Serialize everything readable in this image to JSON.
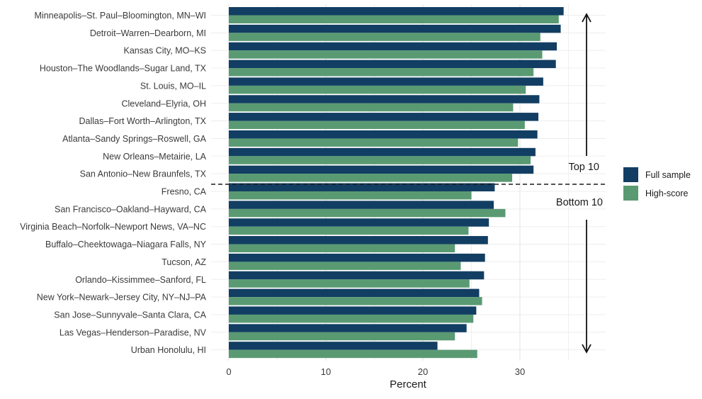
{
  "chart_data": {
    "type": "bar",
    "orientation": "horizontal",
    "categories": [
      "Minneapolis–St. Paul–Bloomington, MN–WI",
      "Detroit–Warren–Dearborn, MI",
      "Kansas City, MO–KS",
      "Houston–The Woodlands–Sugar Land, TX",
      "St. Louis, MO–IL",
      "Cleveland–Elyria, OH",
      "Dallas–Fort Worth–Arlington, TX",
      "Atlanta–Sandy Springs–Roswell, GA",
      "New Orleans–Metairie, LA",
      "San Antonio–New Braunfels, TX",
      "Fresno, CA",
      "San Francisco–Oakland–Hayward, CA",
      "Virginia Beach–Norfolk–Newport News, VA–NC",
      "Buffalo–Cheektowaga–Niagara Falls, NY",
      "Tucson, AZ",
      "Orlando–Kissimmee–Sanford, FL",
      "New York–Newark–Jersey City, NY–NJ–PA",
      "San Jose–Sunnyvale–Santa Clara, CA",
      "Las Vegas–Henderson–Paradise, NV",
      "Urban Honolulu, HI"
    ],
    "series": [
      {
        "name": "Full sample",
        "color": "#123e63",
        "values": [
          34.5,
          34.2,
          33.8,
          33.7,
          32.4,
          32.0,
          31.9,
          31.8,
          31.6,
          31.4,
          27.4,
          27.3,
          26.8,
          26.7,
          26.4,
          26.3,
          25.8,
          25.5,
          24.5,
          21.5
        ]
      },
      {
        "name": "High-score",
        "color": "#5a9a73",
        "values": [
          34.0,
          32.1,
          32.3,
          31.4,
          30.6,
          29.3,
          30.5,
          29.8,
          31.1,
          29.2,
          25.0,
          28.5,
          24.7,
          23.3,
          23.9,
          24.8,
          26.1,
          25.2,
          23.3,
          25.6
        ]
      }
    ],
    "xlabel": "Percent",
    "ylabel": "",
    "xlim": [
      0,
      38
    ],
    "xticks": [
      0,
      10,
      20,
      30
    ],
    "grid": true,
    "legend_position": "right",
    "annotations": {
      "top_label": "Top 10",
      "bottom_label": "Bottom 10"
    }
  }
}
